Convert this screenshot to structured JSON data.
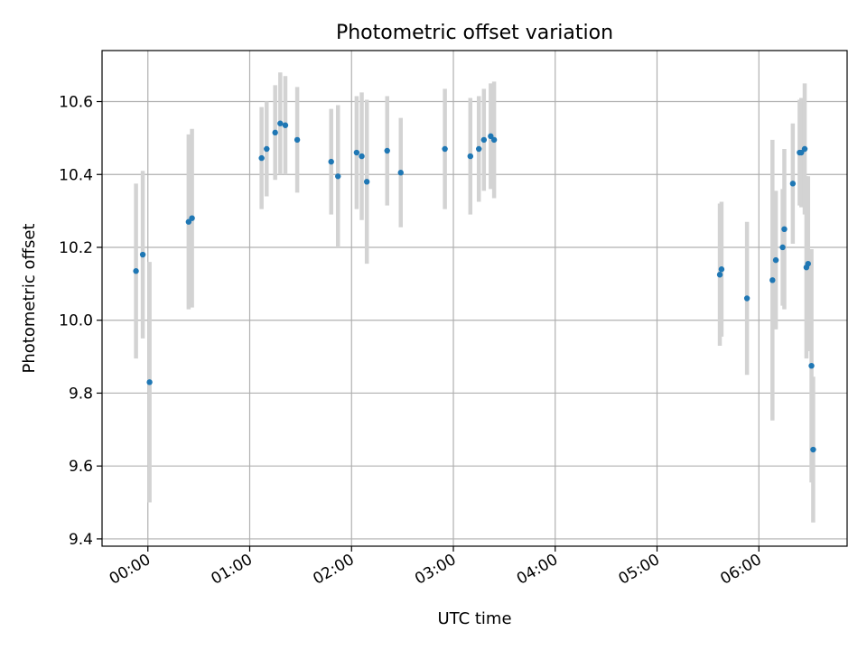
{
  "chart_data": {
    "type": "scatter",
    "title": "Photometric offset variation",
    "xlabel": "UTC time",
    "ylabel": "Photometric offset",
    "x_tick_labels": [
      "00:00",
      "01:00",
      "02:00",
      "03:00",
      "04:00",
      "05:00",
      "06:00"
    ],
    "x_ticks": [
      "00:00",
      "01:00",
      "02:00",
      "03:00",
      "04:00",
      "05:00",
      "06:00"
    ],
    "xlim": [
      "-00:27",
      "06:52"
    ],
    "y_ticks": [
      9.4,
      9.6,
      9.8,
      10.0,
      10.2,
      10.4,
      10.6
    ],
    "y_tick_labels": [
      "9.4",
      "9.6",
      "9.8",
      "10.0",
      "10.2",
      "10.4",
      "10.6"
    ],
    "ylim": [
      9.38,
      10.74
    ],
    "grid": true,
    "point_color": "#1f77b4",
    "errorbar_color": "#d3d3d3",
    "points": [
      {
        "x": "-00:07",
        "y": 10.135,
        "yerr": 0.24
      },
      {
        "x": "-00:03",
        "y": 10.18,
        "yerr": 0.23
      },
      {
        "x": "00:01",
        "y": 9.83,
        "yerr": 0.33
      },
      {
        "x": "00:24",
        "y": 10.27,
        "yerr": 0.24
      },
      {
        "x": "00:26",
        "y": 10.28,
        "yerr": 0.245
      },
      {
        "x": "01:07",
        "y": 10.445,
        "yerr": 0.14
      },
      {
        "x": "01:10",
        "y": 10.47,
        "yerr": 0.13
      },
      {
        "x": "01:15",
        "y": 10.515,
        "yerr": 0.13
      },
      {
        "x": "01:18",
        "y": 10.54,
        "yerr": 0.14
      },
      {
        "x": "01:21",
        "y": 10.535,
        "yerr": 0.135
      },
      {
        "x": "01:28",
        "y": 10.495,
        "yerr": 0.145
      },
      {
        "x": "01:48",
        "y": 10.435,
        "yerr": 0.145
      },
      {
        "x": "01:52",
        "y": 10.395,
        "yerr": 0.195
      },
      {
        "x": "02:03",
        "y": 10.46,
        "yerr": 0.155
      },
      {
        "x": "02:06",
        "y": 10.45,
        "yerr": 0.175
      },
      {
        "x": "02:09",
        "y": 10.38,
        "yerr": 0.225
      },
      {
        "x": "02:21",
        "y": 10.465,
        "yerr": 0.15
      },
      {
        "x": "02:29",
        "y": 10.405,
        "yerr": 0.15
      },
      {
        "x": "02:55",
        "y": 10.47,
        "yerr": 0.165
      },
      {
        "x": "03:10",
        "y": 10.45,
        "yerr": 0.16
      },
      {
        "x": "03:15",
        "y": 10.47,
        "yerr": 0.145
      },
      {
        "x": "03:18",
        "y": 10.495,
        "yerr": 0.14
      },
      {
        "x": "03:22",
        "y": 10.505,
        "yerr": 0.145
      },
      {
        "x": "03:24",
        "y": 10.495,
        "yerr": 0.16
      },
      {
        "x": "05:37",
        "y": 10.125,
        "yerr": 0.195
      },
      {
        "x": "05:38",
        "y": 10.14,
        "yerr": 0.185
      },
      {
        "x": "05:53",
        "y": 10.06,
        "yerr": 0.21
      },
      {
        "x": "06:08",
        "y": 10.11,
        "yerr": 0.385
      },
      {
        "x": "06:10",
        "y": 10.165,
        "yerr": 0.19
      },
      {
        "x": "06:14",
        "y": 10.2,
        "yerr": 0.16
      },
      {
        "x": "06:15",
        "y": 10.25,
        "yerr": 0.22
      },
      {
        "x": "06:20",
        "y": 10.375,
        "yerr": 0.165
      },
      {
        "x": "06:24",
        "y": 10.46,
        "yerr": 0.145
      },
      {
        "x": "06:25",
        "y": 10.46,
        "yerr": 0.15
      },
      {
        "x": "06:27",
        "y": 10.47,
        "yerr": 0.18
      },
      {
        "x": "06:28",
        "y": 10.145,
        "yerr": 0.25
      },
      {
        "x": "06:29",
        "y": 10.155,
        "yerr": 0.24
      },
      {
        "x": "06:31",
        "y": 9.875,
        "yerr": 0.32
      },
      {
        "x": "06:32",
        "y": 9.645,
        "yerr": 0.2
      }
    ]
  }
}
